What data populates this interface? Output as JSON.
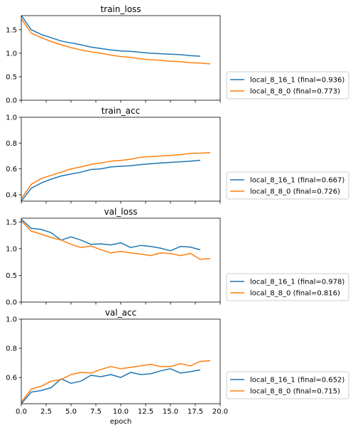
{
  "colors": {
    "series1": "#1f77b4",
    "series2": "#ff7f0e"
  },
  "chart_data": [
    {
      "type": "line",
      "title": "train_loss",
      "xlabel": "",
      "ylabel": "",
      "xlim": [
        0,
        20
      ],
      "ylim": [
        0.0,
        1.8
      ],
      "xticks": [
        0,
        2.5,
        5,
        7.5,
        10,
        12.5,
        15,
        17.5,
        20
      ],
      "xtick_labels_visible": false,
      "yticks": [
        0.0,
        0.5,
        1.0,
        1.5
      ],
      "ytick_labels": [
        "0.0",
        "0.5",
        "1.0",
        "1.5"
      ],
      "grid": false,
      "legend_position": "right, bottom",
      "series": [
        {
          "name": "local_8_16_1 (final=0.936)",
          "color": "#1f77b4",
          "x": [
            0,
            1,
            2,
            3,
            4,
            5,
            6,
            7,
            8,
            9,
            10,
            11,
            12,
            13,
            14,
            15,
            16,
            17,
            18
          ],
          "y": [
            1.8,
            1.5,
            1.4,
            1.33,
            1.26,
            1.22,
            1.18,
            1.13,
            1.1,
            1.07,
            1.05,
            1.04,
            1.02,
            1.0,
            0.99,
            0.98,
            0.97,
            0.95,
            0.936
          ]
        },
        {
          "name": "local_8_8_0 (final=0.773)",
          "color": "#ff7f0e",
          "x": [
            0,
            1,
            2,
            3,
            4,
            5,
            6,
            7,
            8,
            9,
            10,
            11,
            12,
            13,
            14,
            15,
            16,
            17,
            18,
            19
          ],
          "y": [
            1.73,
            1.43,
            1.33,
            1.25,
            1.18,
            1.12,
            1.07,
            1.03,
            1.0,
            0.96,
            0.93,
            0.91,
            0.88,
            0.86,
            0.85,
            0.83,
            0.82,
            0.8,
            0.79,
            0.773
          ]
        }
      ]
    },
    {
      "type": "line",
      "title": "train_acc",
      "xlabel": "",
      "ylabel": "",
      "xlim": [
        0,
        20
      ],
      "ylim": [
        0.35,
        1.0
      ],
      "xticks": [
        0,
        2.5,
        5,
        7.5,
        10,
        12.5,
        15,
        17.5,
        20
      ],
      "xtick_labels_visible": false,
      "yticks": [
        0.4,
        0.6,
        0.8,
        1.0
      ],
      "ytick_labels": [
        "0.4",
        "0.6",
        "0.8",
        "1.0"
      ],
      "grid": false,
      "legend_position": "right, bottom",
      "series": [
        {
          "name": "local_8_16_1 (final=0.667)",
          "color": "#1f77b4",
          "x": [
            0,
            1,
            2,
            3,
            4,
            5,
            6,
            7,
            8,
            9,
            10,
            11,
            12,
            13,
            14,
            15,
            16,
            17,
            18
          ],
          "y": [
            0.35,
            0.45,
            0.49,
            0.52,
            0.545,
            0.56,
            0.575,
            0.595,
            0.6,
            0.615,
            0.62,
            0.625,
            0.633,
            0.64,
            0.645,
            0.65,
            0.655,
            0.66,
            0.667
          ]
        },
        {
          "name": "local_8_8_0 (final=0.726)",
          "color": "#ff7f0e",
          "x": [
            0,
            1,
            2,
            3,
            4,
            5,
            6,
            7,
            8,
            9,
            10,
            11,
            12,
            13,
            14,
            15,
            16,
            17,
            18,
            19
          ],
          "y": [
            0.37,
            0.48,
            0.525,
            0.55,
            0.575,
            0.6,
            0.615,
            0.635,
            0.645,
            0.66,
            0.665,
            0.675,
            0.69,
            0.695,
            0.7,
            0.705,
            0.71,
            0.72,
            0.722,
            0.726
          ]
        }
      ]
    },
    {
      "type": "line",
      "title": "val_loss",
      "xlabel": "",
      "ylabel": "",
      "xlim": [
        0,
        20
      ],
      "ylim": [
        0.0,
        1.57
      ],
      "xticks": [
        0,
        2.5,
        5,
        7.5,
        10,
        12.5,
        15,
        17.5,
        20
      ],
      "xtick_labels_visible": false,
      "yticks": [
        0.0,
        0.5,
        1.0,
        1.5
      ],
      "ytick_labels": [
        "0.0",
        "0.5",
        "1.0",
        "1.5"
      ],
      "grid": false,
      "legend_position": "right, bottom",
      "series": [
        {
          "name": "local_8_16_1 (final=0.978)",
          "color": "#1f77b4",
          "x": [
            0,
            1,
            2,
            3,
            4,
            5,
            6,
            7,
            8,
            9,
            10,
            11,
            12,
            13,
            14,
            15,
            16,
            17,
            18
          ],
          "y": [
            1.55,
            1.38,
            1.36,
            1.3,
            1.16,
            1.22,
            1.16,
            1.08,
            1.09,
            1.07,
            1.11,
            1.02,
            1.06,
            1.04,
            1.01,
            0.96,
            1.04,
            1.03,
            0.978
          ]
        },
        {
          "name": "local_8_8_0 (final=0.816)",
          "color": "#ff7f0e",
          "x": [
            0,
            1,
            2,
            3,
            4,
            5,
            6,
            7,
            8,
            9,
            10,
            11,
            12,
            13,
            14,
            15,
            16,
            17,
            18,
            19
          ],
          "y": [
            1.52,
            1.33,
            1.27,
            1.21,
            1.16,
            1.08,
            1.02,
            1.05,
            0.98,
            0.92,
            0.95,
            0.92,
            0.9,
            0.87,
            0.92,
            0.91,
            0.87,
            0.91,
            0.8,
            0.816
          ]
        }
      ]
    },
    {
      "type": "line",
      "title": "val_acc",
      "xlabel": "epoch",
      "ylabel": "",
      "xlim": [
        0,
        20
      ],
      "ylim": [
        0.42,
        1.0
      ],
      "xticks": [
        0,
        2.5,
        5,
        7.5,
        10,
        12.5,
        15,
        17.5,
        20
      ],
      "xtick_labels": [
        "0.0",
        "2.5",
        "5.0",
        "7.5",
        "10.0",
        "12.5",
        "15.0",
        "17.5",
        "20.0"
      ],
      "xtick_labels_visible": true,
      "yticks": [
        0.6,
        0.8,
        1.0
      ],
      "ytick_labels": [
        "0.6",
        "0.8",
        "1.0"
      ],
      "grid": false,
      "legend_position": "right, bottom",
      "series": [
        {
          "name": "local_8_16_1 (final=0.652)",
          "color": "#1f77b4",
          "x": [
            0,
            1,
            2,
            3,
            4,
            5,
            6,
            7,
            8,
            9,
            10,
            11,
            12,
            13,
            14,
            15,
            16,
            17,
            18
          ],
          "y": [
            0.42,
            0.5,
            0.51,
            0.53,
            0.59,
            0.56,
            0.575,
            0.615,
            0.605,
            0.62,
            0.6,
            0.635,
            0.62,
            0.625,
            0.645,
            0.66,
            0.63,
            0.64,
            0.652
          ]
        },
        {
          "name": "local_8_8_0 (final=0.715)",
          "color": "#ff7f0e",
          "x": [
            0,
            1,
            2,
            3,
            4,
            5,
            6,
            7,
            8,
            9,
            10,
            11,
            12,
            13,
            14,
            15,
            16,
            17,
            18,
            19
          ],
          "y": [
            0.43,
            0.52,
            0.54,
            0.575,
            0.585,
            0.62,
            0.635,
            0.63,
            0.655,
            0.675,
            0.66,
            0.67,
            0.68,
            0.69,
            0.675,
            0.675,
            0.695,
            0.68,
            0.71,
            0.715
          ]
        }
      ]
    }
  ]
}
